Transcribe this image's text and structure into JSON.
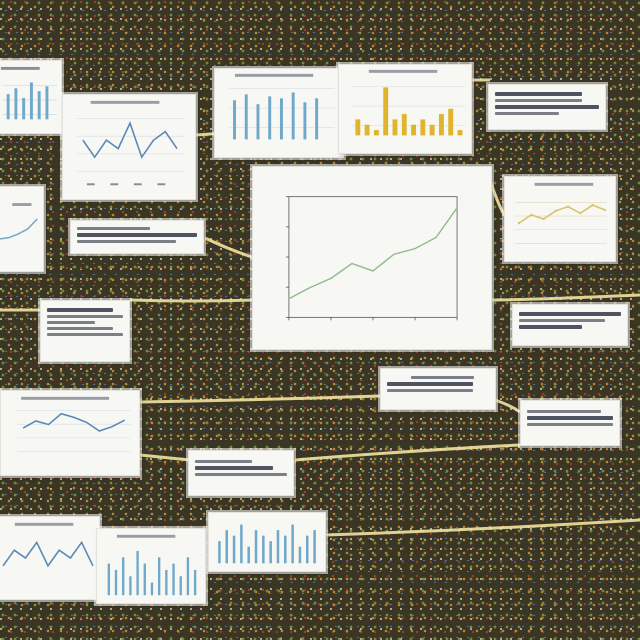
{
  "main_chart": {
    "title": "",
    "xlabel": "",
    "ylabel": ""
  },
  "chart_data": [
    {
      "type": "line",
      "x": [
        0,
        1,
        2,
        3,
        4,
        5,
        6,
        7,
        8
      ],
      "series": [
        {
          "values": [
            1.0,
            1.6,
            2.1,
            2.9,
            2.5,
            3.4,
            3.7,
            4.3,
            5.9
          ]
        }
      ],
      "ylim": [
        0,
        6.5
      ],
      "grid": false,
      "color": "#8fba8a"
    },
    {
      "type": "bar",
      "values": [
        3,
        2,
        1,
        9,
        3,
        4,
        2,
        3,
        2,
        4,
        5,
        1
      ],
      "color": "#e0b52c",
      "grid": true
    },
    {
      "type": "line",
      "values": [
        3,
        1,
        3,
        2,
        5,
        1,
        3,
        4,
        2
      ],
      "color": "#5b87b8",
      "grid": true
    },
    {
      "type": "bar",
      "values": [
        4,
        6,
        3,
        7,
        2,
        5,
        6,
        3,
        4,
        6
      ],
      "color": "#6fa8c9"
    },
    {
      "type": "line",
      "values": [
        1,
        1.2,
        1.8,
        2.6,
        4.2
      ],
      "color": "#6fa8c9"
    },
    {
      "type": "line",
      "values": [
        2,
        3,
        2.5,
        3.5,
        4,
        3.2,
        4.2,
        3.6
      ],
      "color": "#d9c26a",
      "grid": true
    },
    {
      "type": "line",
      "values": [
        3,
        4,
        3.5,
        5,
        4.5,
        3.8,
        2.6,
        3.2,
        4.1
      ],
      "color": "#5b87b8",
      "grid": true
    },
    {
      "type": "bar",
      "values": [
        5,
        4,
        6,
        3,
        7,
        5,
        2,
        6,
        4,
        5,
        3,
        6,
        4
      ],
      "color": "#6fa8c9"
    },
    {
      "type": "line",
      "values": [
        2,
        4,
        3,
        5,
        2,
        4,
        3,
        5,
        2
      ],
      "color": "#5b87b8"
    },
    {
      "type": "bar",
      "values": [
        4,
        6,
        5,
        7,
        3,
        6,
        5,
        4,
        6,
        5,
        7,
        3,
        5,
        6
      ],
      "color": "#6fa8c9"
    }
  ],
  "colors": {
    "connector": "#f1e3a0",
    "card": "#f7f7f4",
    "ink": "#505462"
  }
}
